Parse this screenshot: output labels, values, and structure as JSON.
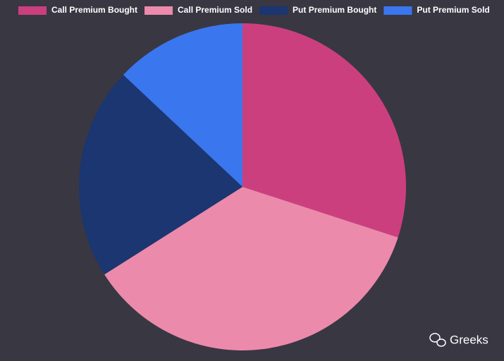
{
  "chart_data": {
    "type": "pie",
    "categories": [
      "Call Premium Bought",
      "Call Premium Sold",
      "Put Premium Bought",
      "Put Premium Sold"
    ],
    "values": [
      30,
      36,
      21,
      13
    ],
    "colors": [
      "#cc3f7e",
      "#ec8aac",
      "#1b3670",
      "#3a76ee"
    ],
    "legend": "top"
  },
  "watermark": "Greeks"
}
